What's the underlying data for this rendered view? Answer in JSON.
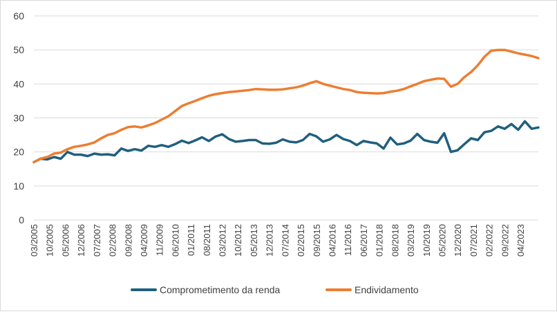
{
  "chart_data": {
    "type": "line",
    "title": "",
    "xlabel": "",
    "ylabel": "",
    "ylim": [
      0,
      60
    ],
    "yticks": [
      0,
      10,
      20,
      30,
      40,
      50,
      60
    ],
    "grid": "horizontal",
    "legend": "bottom",
    "x_start": "03/2005",
    "x_end": "12/2023",
    "x_tick_labels": [
      "03/2005",
      "10/2005",
      "05/2006",
      "12/2006",
      "07/2007",
      "02/2008",
      "09/2008",
      "04/2009",
      "11/2009",
      "06/2010",
      "01/2011",
      "08/2011",
      "03/2012",
      "10/2012",
      "05/2013",
      "12/2013",
      "07/2014",
      "02/2015",
      "09/2015",
      "04/2016",
      "11/2016",
      "06/2017",
      "01/2018",
      "08/2018",
      "03/2019",
      "10/2019",
      "05/2020",
      "12/2020",
      "07/2021",
      "02/2022",
      "09/2022",
      "04/2023"
    ],
    "series": [
      {
        "name": "Comprometimento da renda",
        "color": "#1f5f7f",
        "points": [
          [
            "03/2005",
            17.0
          ],
          [
            "06/2005",
            18.0
          ],
          [
            "09/2005",
            17.8
          ],
          [
            "12/2005",
            18.5
          ],
          [
            "03/2006",
            18.0
          ],
          [
            "06/2006",
            20.0
          ],
          [
            "09/2006",
            19.2
          ],
          [
            "12/2006",
            19.2
          ],
          [
            "03/2007",
            18.8
          ],
          [
            "06/2007",
            19.5
          ],
          [
            "09/2007",
            19.2
          ],
          [
            "12/2007",
            19.3
          ],
          [
            "03/2008",
            19.0
          ],
          [
            "06/2008",
            21.0
          ],
          [
            "09/2008",
            20.3
          ],
          [
            "12/2008",
            20.8
          ],
          [
            "03/2009",
            20.4
          ],
          [
            "06/2009",
            21.8
          ],
          [
            "09/2009",
            21.5
          ],
          [
            "12/2009",
            22.0
          ],
          [
            "03/2010",
            21.5
          ],
          [
            "06/2010",
            22.3
          ],
          [
            "09/2010",
            23.3
          ],
          [
            "12/2010",
            22.6
          ],
          [
            "03/2011",
            23.4
          ],
          [
            "06/2011",
            24.3
          ],
          [
            "09/2011",
            23.2
          ],
          [
            "12/2011",
            24.5
          ],
          [
            "03/2012",
            25.2
          ],
          [
            "06/2012",
            23.8
          ],
          [
            "09/2012",
            23.0
          ],
          [
            "12/2012",
            23.2
          ],
          [
            "03/2013",
            23.5
          ],
          [
            "06/2013",
            23.5
          ],
          [
            "09/2013",
            22.5
          ],
          [
            "12/2013",
            22.4
          ],
          [
            "03/2014",
            22.7
          ],
          [
            "06/2014",
            23.7
          ],
          [
            "09/2014",
            23.0
          ],
          [
            "12/2014",
            22.8
          ],
          [
            "03/2015",
            23.5
          ],
          [
            "06/2015",
            25.3
          ],
          [
            "09/2015",
            24.6
          ],
          [
            "12/2015",
            23.0
          ],
          [
            "03/2016",
            23.7
          ],
          [
            "06/2016",
            25.0
          ],
          [
            "09/2016",
            23.8
          ],
          [
            "12/2016",
            23.2
          ],
          [
            "03/2017",
            22.0
          ],
          [
            "06/2017",
            23.2
          ],
          [
            "09/2017",
            22.8
          ],
          [
            "12/2017",
            22.5
          ],
          [
            "03/2018",
            21.0
          ],
          [
            "06/2018",
            24.2
          ],
          [
            "09/2018",
            22.2
          ],
          [
            "12/2018",
            22.5
          ],
          [
            "03/2019",
            23.3
          ],
          [
            "06/2019",
            25.3
          ],
          [
            "09/2019",
            23.5
          ],
          [
            "12/2019",
            23.0
          ],
          [
            "03/2020",
            22.7
          ],
          [
            "06/2020",
            25.5
          ],
          [
            "09/2020",
            20.0
          ],
          [
            "12/2020",
            20.5
          ],
          [
            "03/2021",
            22.3
          ],
          [
            "06/2021",
            24.0
          ],
          [
            "09/2021",
            23.5
          ],
          [
            "12/2021",
            25.8
          ],
          [
            "03/2022",
            26.2
          ],
          [
            "06/2022",
            27.5
          ],
          [
            "09/2022",
            26.8
          ],
          [
            "12/2022",
            28.2
          ],
          [
            "03/2023",
            26.5
          ],
          [
            "06/2023",
            29.0
          ],
          [
            "09/2023",
            26.8
          ],
          [
            "12/2023",
            27.2
          ]
        ]
      },
      {
        "name": "Endividamento",
        "color": "#ed7d31",
        "points": [
          [
            "03/2005",
            17.0
          ],
          [
            "06/2005",
            18.0
          ],
          [
            "09/2005",
            18.5
          ],
          [
            "12/2005",
            19.5
          ],
          [
            "03/2006",
            19.8
          ],
          [
            "06/2006",
            20.8
          ],
          [
            "09/2006",
            21.5
          ],
          [
            "12/2006",
            21.8
          ],
          [
            "03/2007",
            22.2
          ],
          [
            "06/2007",
            22.8
          ],
          [
            "09/2007",
            24.0
          ],
          [
            "12/2007",
            25.0
          ],
          [
            "03/2008",
            25.5
          ],
          [
            "06/2008",
            26.5
          ],
          [
            "09/2008",
            27.3
          ],
          [
            "12/2008",
            27.5
          ],
          [
            "03/2009",
            27.2
          ],
          [
            "06/2009",
            27.8
          ],
          [
            "09/2009",
            28.5
          ],
          [
            "12/2009",
            29.5
          ],
          [
            "03/2010",
            30.5
          ],
          [
            "06/2010",
            32.0
          ],
          [
            "09/2010",
            33.5
          ],
          [
            "12/2010",
            34.3
          ],
          [
            "03/2011",
            35.0
          ],
          [
            "06/2011",
            35.8
          ],
          [
            "09/2011",
            36.5
          ],
          [
            "12/2011",
            37.0
          ],
          [
            "03/2012",
            37.3
          ],
          [
            "06/2012",
            37.6
          ],
          [
            "09/2012",
            37.8
          ],
          [
            "12/2012",
            38.0
          ],
          [
            "03/2013",
            38.2
          ],
          [
            "06/2013",
            38.5
          ],
          [
            "09/2013",
            38.4
          ],
          [
            "12/2013",
            38.3
          ],
          [
            "03/2014",
            38.3
          ],
          [
            "06/2014",
            38.4
          ],
          [
            "09/2014",
            38.7
          ],
          [
            "12/2014",
            39.0
          ],
          [
            "03/2015",
            39.5
          ],
          [
            "06/2015",
            40.2
          ],
          [
            "09/2015",
            40.8
          ],
          [
            "12/2015",
            40.0
          ],
          [
            "03/2016",
            39.5
          ],
          [
            "06/2016",
            39.0
          ],
          [
            "09/2016",
            38.5
          ],
          [
            "12/2016",
            38.2
          ],
          [
            "03/2017",
            37.6
          ],
          [
            "06/2017",
            37.4
          ],
          [
            "09/2017",
            37.3
          ],
          [
            "12/2017",
            37.2
          ],
          [
            "03/2018",
            37.3
          ],
          [
            "06/2018",
            37.7
          ],
          [
            "09/2018",
            38.0
          ],
          [
            "12/2018",
            38.5
          ],
          [
            "03/2019",
            39.3
          ],
          [
            "06/2019",
            40.0
          ],
          [
            "09/2019",
            40.8
          ],
          [
            "12/2019",
            41.2
          ],
          [
            "03/2020",
            41.6
          ],
          [
            "06/2020",
            41.5
          ],
          [
            "09/2020",
            39.2
          ],
          [
            "12/2020",
            40.0
          ],
          [
            "03/2021",
            42.0
          ],
          [
            "06/2021",
            43.5
          ],
          [
            "09/2021",
            45.5
          ],
          [
            "12/2021",
            48.0
          ],
          [
            "03/2022",
            49.8
          ],
          [
            "06/2022",
            50.0
          ],
          [
            "09/2022",
            50.0
          ],
          [
            "12/2022",
            49.5
          ],
          [
            "03/2023",
            49.0
          ],
          [
            "06/2023",
            48.6
          ],
          [
            "09/2023",
            48.2
          ],
          [
            "12/2023",
            47.6
          ]
        ]
      }
    ]
  }
}
